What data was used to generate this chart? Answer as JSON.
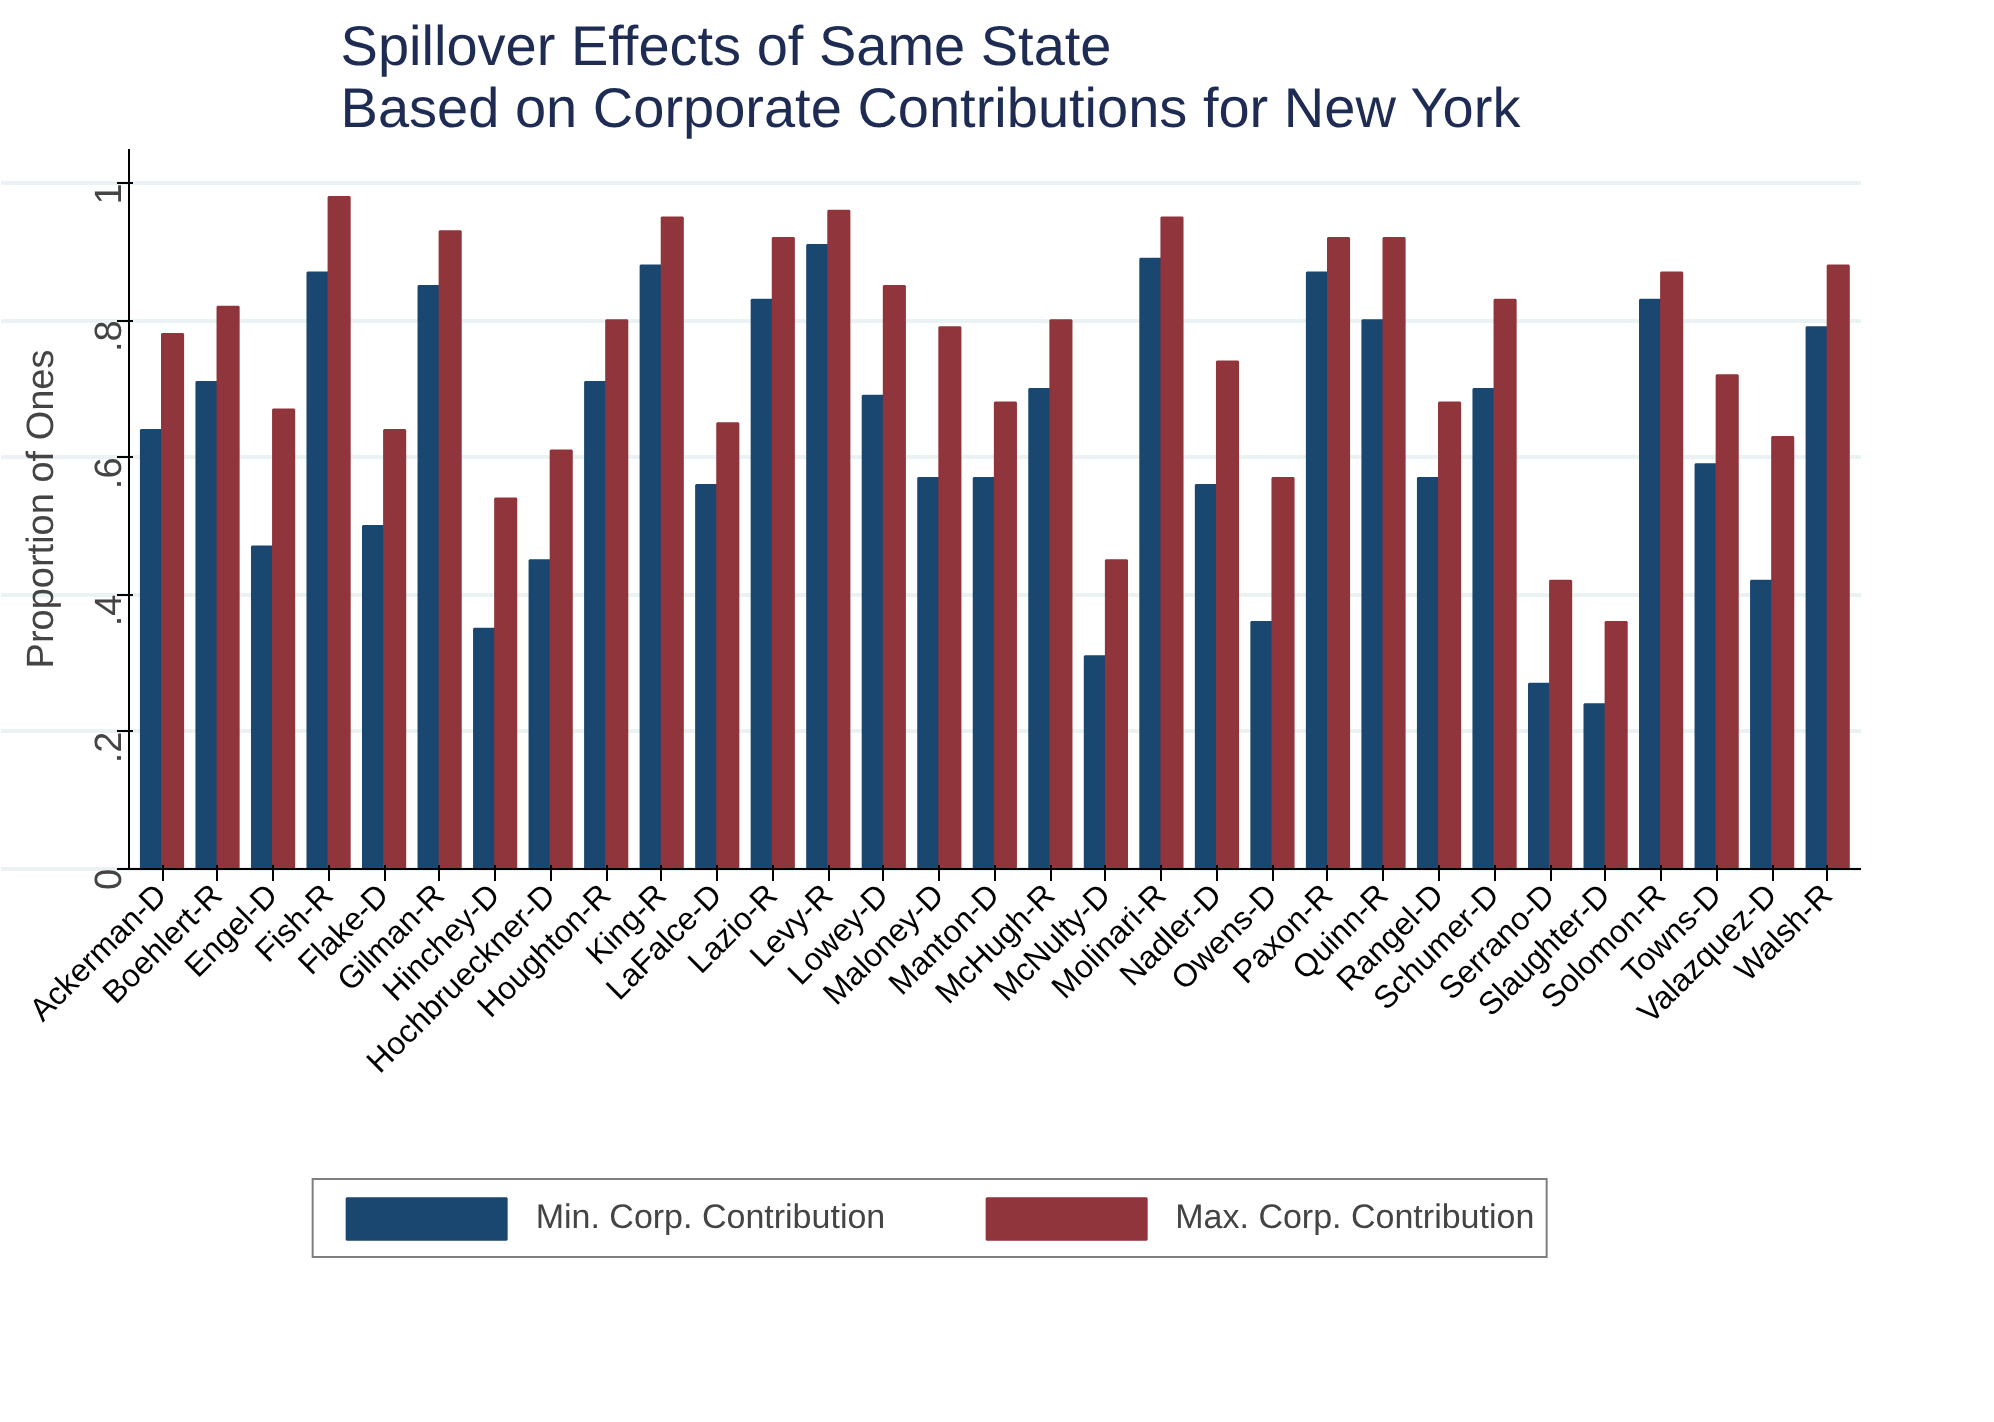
{
  "chart_data": {
    "type": "bar",
    "title": "Spillover Effects of Same State\nBased on Corporate Contributions for New York",
    "ylabel": "Proportion of Ones",
    "categories": [
      "Ackerman-D",
      "Boehlert-R",
      "Engel-D",
      "Fish-R",
      "Flake-D",
      "Gilman-R",
      "Hinchey-D",
      "Hochbrueckner-D",
      "Houghton-R",
      "King-R",
      "LaFalce-D",
      "Lazio-R",
      "Levy-R",
      "Lowey-D",
      "Maloney-D",
      "Manton-D",
      "McHugh-R",
      "McNulty-D",
      "Molinari-R",
      "Nadler-D",
      "Owens-D",
      "Paxon-R",
      "Quinn-R",
      "Rangel-D",
      "Schumer-D",
      "Serrano-D",
      "Slaughter-D",
      "Solomon-R",
      "Towns-D",
      "Valazquez-D",
      "Walsh-R"
    ],
    "series": [
      {
        "name": "Min. Corp. Contribution",
        "color": "#1a476f",
        "values": [
          0.64,
          0.71,
          0.47,
          0.87,
          0.5,
          0.85,
          0.35,
          0.45,
          0.71,
          0.88,
          0.56,
          0.83,
          0.91,
          0.69,
          0.57,
          0.57,
          0.7,
          0.31,
          0.89,
          0.56,
          0.36,
          0.87,
          0.8,
          0.57,
          0.7,
          0.27,
          0.24,
          0.83,
          0.59,
          0.42,
          0.79
        ]
      },
      {
        "name": "Max. Corp. Contribution",
        "color": "#90353b",
        "values": [
          0.78,
          0.82,
          0.67,
          0.98,
          0.64,
          0.93,
          0.54,
          0.61,
          0.8,
          0.95,
          0.65,
          0.92,
          0.96,
          0.85,
          0.79,
          0.68,
          0.8,
          0.45,
          0.95,
          0.74,
          0.57,
          0.92,
          0.92,
          0.68,
          0.83,
          0.42,
          0.36,
          0.87,
          0.72,
          0.63,
          0.88
        ]
      }
    ],
    "ylim": [
      0,
      1.05
    ],
    "yticks": [
      {
        "value": 0,
        "label": "0"
      },
      {
        "value": 0.2,
        "label": ".2"
      },
      {
        "value": 0.4,
        "label": ".4"
      },
      {
        "value": 0.6,
        "label": ".6"
      },
      {
        "value": 0.8,
        "label": ".8"
      },
      {
        "value": 1,
        "label": "1"
      }
    ],
    "grid": "y",
    "legend": "bottom"
  }
}
